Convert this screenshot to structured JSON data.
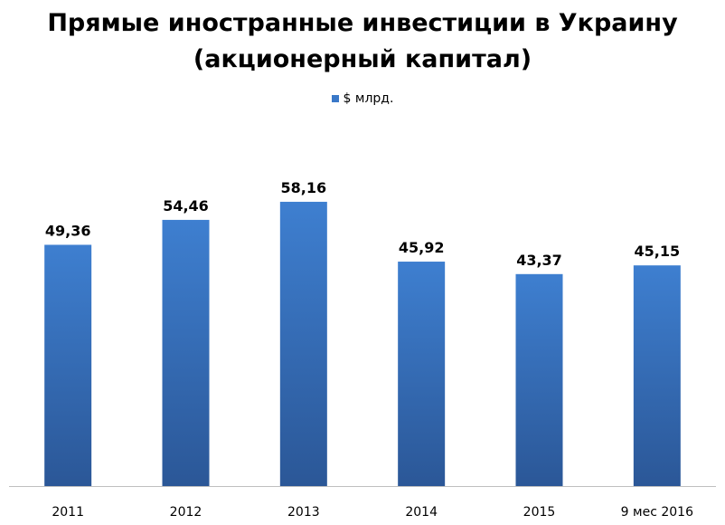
{
  "chart_data": {
    "type": "bar",
    "title_lines": [
      "Прямые иностранные инвестиции в Украину",
      "(акционерный капитал)"
    ],
    "categories": [
      "2011",
      "2012",
      "2013",
      "2014",
      "2015",
      "9 мес 2016"
    ],
    "series": [
      {
        "name": "$ млрд.",
        "values": [
          49.36,
          54.46,
          58.16,
          45.92,
          43.37,
          45.15
        ],
        "labels": [
          "49,36",
          "54,46",
          "58,16",
          "45,92",
          "43,37",
          "45,15"
        ]
      }
    ],
    "xlabel": "",
    "ylabel": "",
    "ylim": [
      0,
      70
    ],
    "grid": false,
    "legend_position": "top",
    "colors": {
      "bar_top": "#3E7FD0",
      "bar_bottom": "#2B5797",
      "legend": "#3A78C8"
    }
  }
}
